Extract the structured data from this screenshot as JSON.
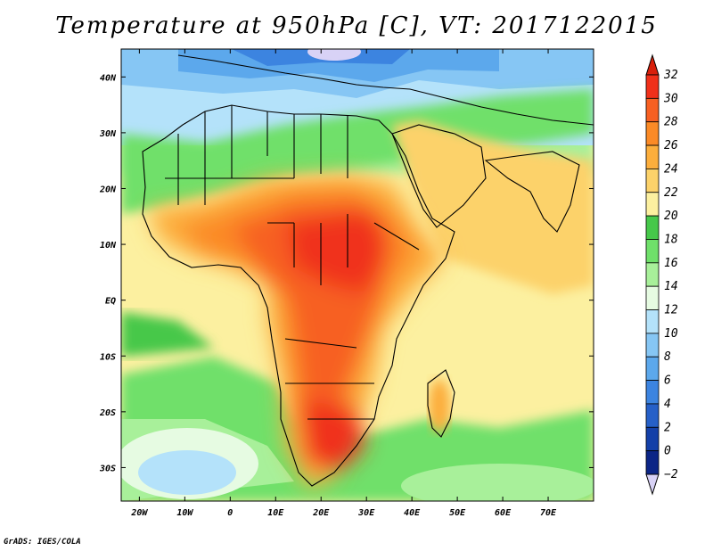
{
  "title": "Temperature at 950hPa [C], VT: 2017122015",
  "credit": "GrADS: IGES/COLA",
  "map": {
    "lon_range": [
      -24,
      80
    ],
    "lat_range": [
      -36,
      45
    ],
    "lat_ticks": [
      {
        "value": 40,
        "label": "40N"
      },
      {
        "value": 30,
        "label": "30N"
      },
      {
        "value": 20,
        "label": "20N"
      },
      {
        "value": 10,
        "label": "10N"
      },
      {
        "value": 0,
        "label": "EQ"
      },
      {
        "value": -10,
        "label": "10S"
      },
      {
        "value": -20,
        "label": "20S"
      },
      {
        "value": -30,
        "label": "30S"
      }
    ],
    "lon_ticks": [
      {
        "value": -20,
        "label": "20W"
      },
      {
        "value": -10,
        "label": "10W"
      },
      {
        "value": 0,
        "label": "0"
      },
      {
        "value": 10,
        "label": "10E"
      },
      {
        "value": 20,
        "label": "20E"
      },
      {
        "value": 30,
        "label": "30E"
      },
      {
        "value": 40,
        "label": "40E"
      },
      {
        "value": 50,
        "label": "50E"
      },
      {
        "value": 60,
        "label": "60E"
      },
      {
        "value": 70,
        "label": "70E"
      }
    ]
  },
  "colorbar": {
    "levels": [
      32,
      30,
      28,
      26,
      24,
      22,
      20,
      18,
      16,
      14,
      12,
      10,
      8,
      6,
      4,
      2,
      0,
      -2
    ],
    "labels": [
      "32",
      "30",
      "28",
      "26",
      "24",
      "22",
      "20",
      "18",
      "16",
      "14",
      "12",
      "10",
      "8",
      "6",
      "4",
      "2",
      "0",
      "−2"
    ],
    "bin_colors": [
      "#f0301a",
      "#f76022",
      "#fb8a26",
      "#fcae3c",
      "#fcd26a",
      "#fcf0a0",
      "#46c84a",
      "#6fe06a",
      "#a8f09a",
      "#e6fbe2",
      "#b4e2fa",
      "#86c6f4",
      "#5ca8ec",
      "#3c84e0",
      "#2660c8",
      "#1440a8",
      "#0c2586"
    ],
    "top_arrow_color": "#d8200c",
    "bottom_arrow_color": "#d8d2f6"
  }
}
